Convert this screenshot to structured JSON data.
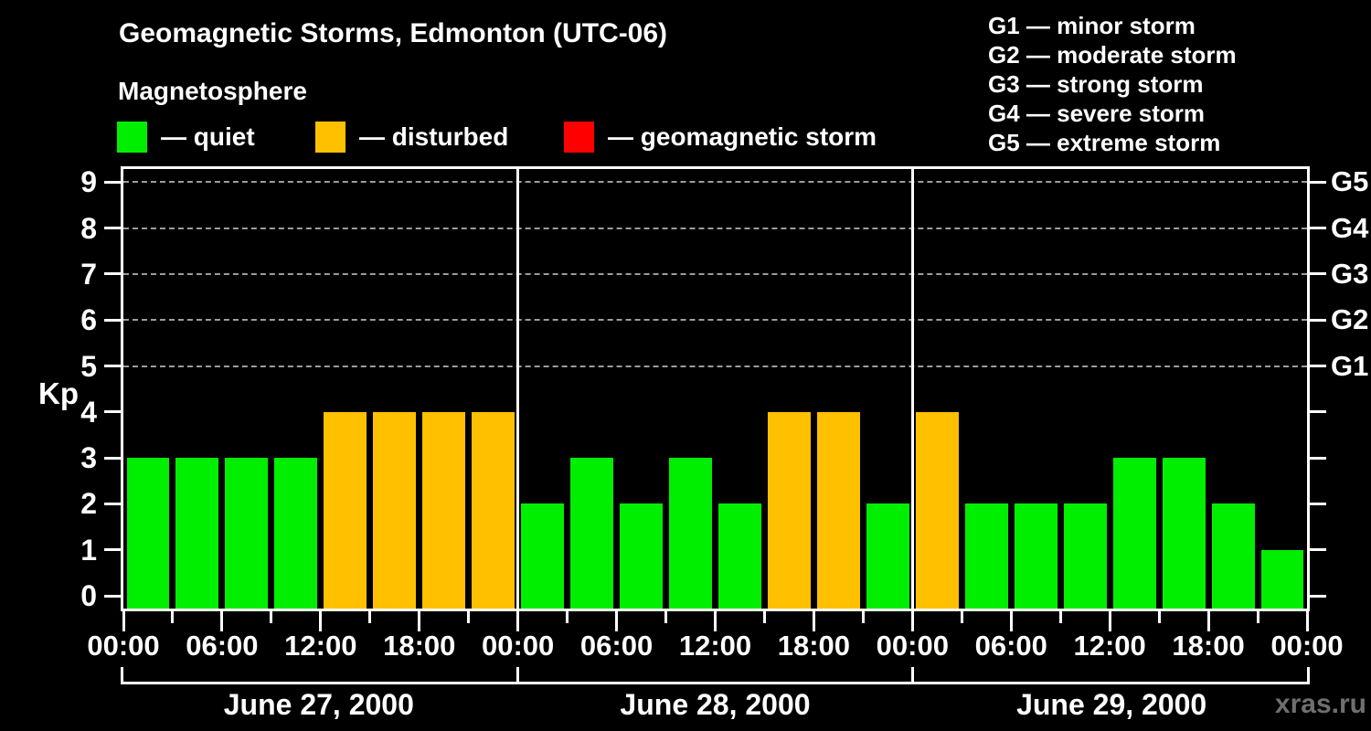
{
  "title": "Geomagnetic Storms, Edmonton (UTC-06)",
  "subtitle": "Magnetosphere",
  "watermark": "xras.ru",
  "condition_legend": [
    {
      "name": "quiet",
      "label": "— quiet",
      "color": "#00ee00"
    },
    {
      "name": "disturbed",
      "label": "— disturbed",
      "color": "#ffc000"
    },
    {
      "name": "storm",
      "label": "— geomagnetic storm",
      "color": "#ff0000"
    }
  ],
  "storm_scale_legend": [
    {
      "level": "G1",
      "label": "G1 — minor storm"
    },
    {
      "level": "G2",
      "label": "G2 — moderate storm"
    },
    {
      "level": "G3",
      "label": "G3 — strong storm"
    },
    {
      "level": "G4",
      "label": "G4 — severe storm"
    },
    {
      "level": "G5",
      "label": "G5 — extreme storm"
    }
  ],
  "chart_data": {
    "type": "bar",
    "title": "Geomagnetic Storms, Edmonton (UTC-06)",
    "ylabel": "Kp",
    "ylim": [
      0,
      9
    ],
    "yticks": [
      0,
      1,
      2,
      3,
      4,
      5,
      6,
      7,
      8,
      9
    ],
    "grid_kp_levels": [
      5,
      6,
      7,
      8,
      9
    ],
    "grid": "dashed horizontal lines at Kp 5-9",
    "legend_position": "top",
    "interval_hours": 3,
    "right_axis_labels": [
      {
        "kp": 5,
        "label": "G1"
      },
      {
        "kp": 6,
        "label": "G2"
      },
      {
        "kp": 7,
        "label": "G3"
      },
      {
        "kp": 8,
        "label": "G4"
      },
      {
        "kp": 9,
        "label": "G5"
      }
    ],
    "x_tick_labels": [
      "00:00",
      "06:00",
      "12:00",
      "18:00",
      "00:00",
      "06:00",
      "12:00",
      "18:00",
      "00:00",
      "06:00",
      "12:00",
      "18:00",
      "00:00"
    ],
    "colors": {
      "quiet": "#00ee00",
      "disturbed": "#ffc000",
      "storm": "#ff0000"
    },
    "days": [
      {
        "date": "June 27, 2000",
        "kp_values": [
          3,
          3,
          3,
          3,
          4,
          4,
          4,
          4
        ],
        "states": [
          "quiet",
          "quiet",
          "quiet",
          "quiet",
          "disturbed",
          "disturbed",
          "disturbed",
          "disturbed"
        ]
      },
      {
        "date": "June 28, 2000",
        "kp_values": [
          2,
          3,
          2,
          3,
          2,
          4,
          4,
          2
        ],
        "states": [
          "quiet",
          "quiet",
          "quiet",
          "quiet",
          "quiet",
          "disturbed",
          "disturbed",
          "quiet"
        ]
      },
      {
        "date": "June 29, 2000",
        "kp_values": [
          4,
          2,
          2,
          2,
          3,
          3,
          2,
          1
        ],
        "states": [
          "disturbed",
          "quiet",
          "quiet",
          "quiet",
          "quiet",
          "quiet",
          "quiet",
          "quiet"
        ]
      }
    ]
  }
}
